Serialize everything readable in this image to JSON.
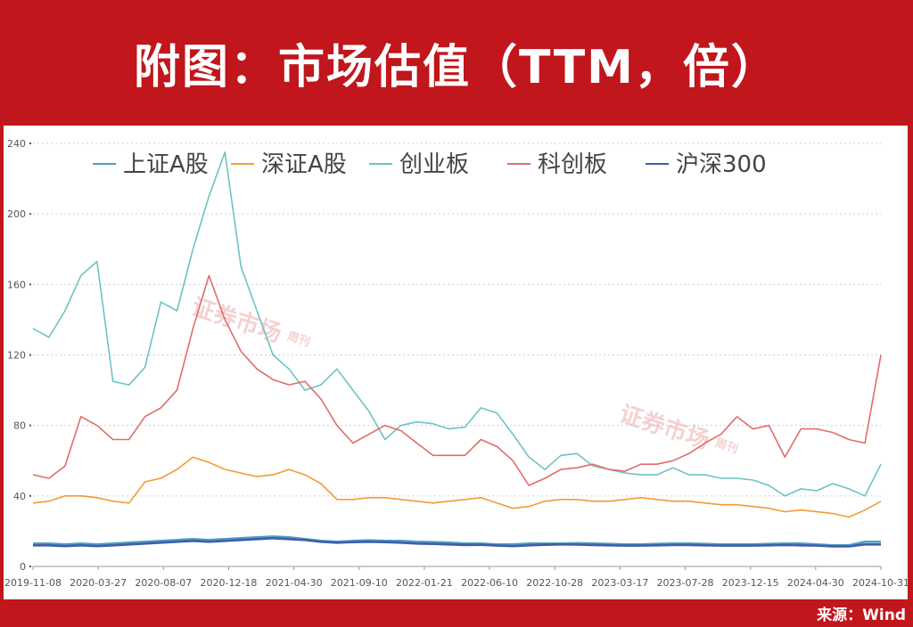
{
  "title": "附图：市场估值（TTM，倍）",
  "source": "来源：Wind",
  "watermark": {
    "main": "证券市场",
    "side": "周刊"
  },
  "chart_data": {
    "type": "line",
    "ylim": [
      0,
      240
    ],
    "yticks": [
      0,
      40,
      80,
      120,
      160,
      200,
      240
    ],
    "xticks": [
      "2019-11-08",
      "2020-03-27",
      "2020-08-07",
      "2020-12-18",
      "2021-04-30",
      "2021-09-10",
      "2022-01-21",
      "2022-06-10",
      "2022-10-28",
      "2023-03-17",
      "2023-07-28",
      "2023-12-15",
      "2024-04-30",
      "2024-10-31"
    ],
    "grid": true,
    "legend_position": "top",
    "series": [
      {
        "name": "上证A股",
        "color": "#4e9ec3",
        "values": [
          13,
          13,
          12.5,
          13,
          12.5,
          13,
          13.5,
          14,
          14.5,
          15,
          15.5,
          15,
          15.5,
          16,
          16.5,
          17,
          16.5,
          15.5,
          14.5,
          14,
          14.5,
          14.8,
          14.5,
          14.5,
          14,
          13.8,
          13.5,
          13,
          13,
          12.5,
          12.5,
          13,
          13,
          13,
          13.2,
          13,
          12.8,
          12.5,
          12.5,
          12.8,
          13,
          13,
          12.8,
          12.5,
          12.5,
          12.5,
          12.8,
          13,
          13,
          12.5,
          12,
          12,
          14,
          14
        ]
      },
      {
        "name": "深证A股",
        "color": "#f29b36",
        "values": [
          36,
          37,
          40,
          40,
          39,
          37,
          36,
          48,
          50,
          55,
          62,
          59,
          55,
          53,
          51,
          52,
          55,
          52,
          47,
          38,
          38,
          39,
          39,
          38,
          37,
          36,
          37,
          38,
          39,
          36,
          33,
          34,
          37,
          38,
          38,
          37,
          37,
          38,
          39,
          38,
          37,
          37,
          36,
          35,
          35,
          34,
          33,
          31,
          32,
          31,
          30,
          28,
          32,
          37
        ]
      },
      {
        "name": "创业板",
        "color": "#6cc4c3",
        "values": [
          135,
          130,
          145,
          165,
          173,
          105,
          103,
          113,
          150,
          145,
          180,
          210,
          235,
          170,
          145,
          120,
          112,
          100,
          103,
          112,
          100,
          88,
          72,
          80,
          82,
          81,
          78,
          79,
          90,
          87,
          75,
          62,
          55,
          63,
          64,
          57,
          55,
          53,
          52,
          52,
          56,
          52,
          52,
          50,
          50,
          49,
          46,
          40,
          44,
          43,
          47,
          44,
          40,
          58
        ]
      },
      {
        "name": "科创板",
        "color": "#e06c6c",
        "values": [
          52,
          50,
          57,
          85,
          80,
          72,
          72,
          85,
          90,
          100,
          135,
          165,
          140,
          122,
          112,
          106,
          103,
          105,
          95,
          80,
          70,
          75,
          80,
          77,
          70,
          63,
          63,
          63,
          72,
          68,
          60,
          46,
          50,
          55,
          56,
          58,
          55,
          54,
          58,
          58,
          60,
          64,
          70,
          75,
          85,
          78,
          80,
          62,
          78,
          78,
          76,
          72,
          70,
          120
        ]
      },
      {
        "name": "沪深300",
        "color": "#3e5fa8",
        "values": [
          12,
          12,
          11.5,
          12,
          11.5,
          12,
          12.5,
          13,
          13.5,
          14,
          14.5,
          14,
          14.5,
          15,
          15.5,
          16,
          15.5,
          15,
          14,
          13.5,
          13.8,
          14,
          13.8,
          13.5,
          13,
          12.8,
          12.5,
          12.2,
          12.3,
          11.8,
          11.5,
          12,
          12.3,
          12.5,
          12.4,
          12.2,
          12,
          11.8,
          11.8,
          12,
          12.2,
          12.2,
          12,
          11.8,
          11.8,
          11.8,
          12,
          12.2,
          12,
          11.8,
          11.4,
          11.4,
          12.5,
          12.5
        ]
      }
    ]
  }
}
